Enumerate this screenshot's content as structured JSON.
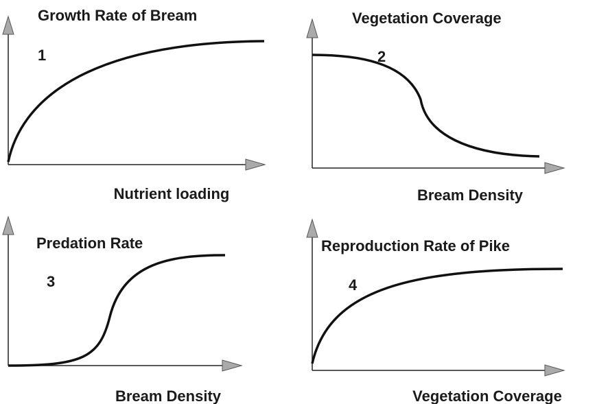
{
  "panels": [
    {
      "y_label": "Growth Rate of Bream",
      "number": "1",
      "x_label": "Nutrient loading"
    },
    {
      "y_label": "Vegetation Coverage",
      "number": "2",
      "x_label": "Bream Density"
    },
    {
      "y_label": "Predation Rate",
      "number": "3",
      "x_label": "Bream Density"
    },
    {
      "y_label": "Reproduction Rate of Pike",
      "number": "4",
      "x_label": "Vegetation Coverage"
    }
  ]
}
